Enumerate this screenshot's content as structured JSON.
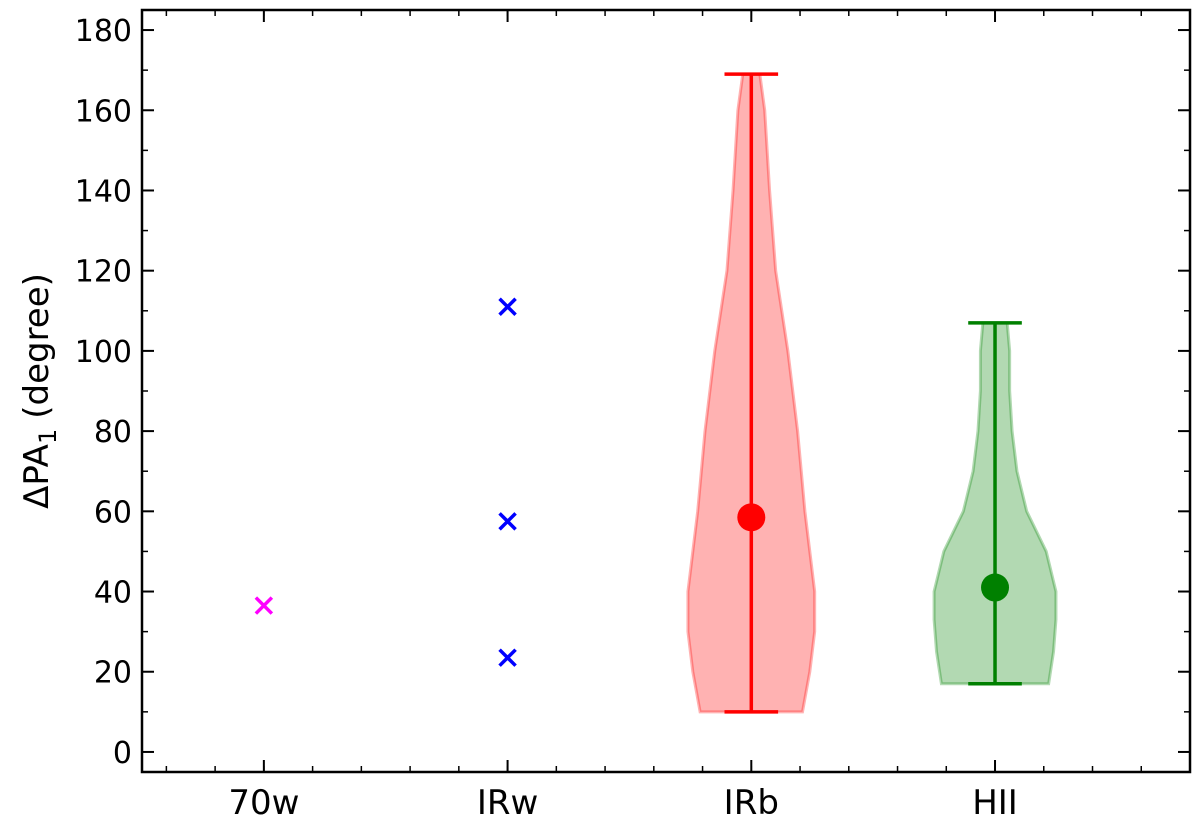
{
  "chart_data": {
    "type": "violin",
    "ylabel": {
      "main": "ΔPA",
      "sub": "1",
      "unit": "(degree)"
    },
    "categories": [
      "70w",
      "IRw",
      "IRb",
      "HII"
    ],
    "xlim": [
      -0.5,
      3.8
    ],
    "ylim": [
      -5,
      185
    ],
    "yticks": [
      0,
      20,
      40,
      60,
      80,
      100,
      120,
      140,
      160,
      180
    ],
    "groups": [
      {
        "kind": "points",
        "color": "#ff00ff",
        "values": [
          36.5
        ]
      },
      {
        "kind": "points",
        "color": "#0000ff",
        "values": [
          111,
          57.5,
          23.5
        ]
      },
      {
        "kind": "violin",
        "color": "#ff0000",
        "min": 10,
        "max": 169,
        "center": 58.5,
        "profile_y": [
          10,
          20,
          30,
          40,
          50,
          60,
          80,
          100,
          120,
          140,
          160,
          169
        ],
        "profile_width": [
          0.21,
          0.24,
          0.26,
          0.26,
          0.24,
          0.22,
          0.19,
          0.15,
          0.1,
          0.075,
          0.055,
          0.035
        ]
      },
      {
        "kind": "violin",
        "color": "#008000",
        "min": 17,
        "max": 107,
        "center": 41,
        "profile_y": [
          17,
          25,
          33,
          40,
          50,
          60,
          70,
          80,
          90,
          100,
          107
        ],
        "profile_width": [
          0.22,
          0.24,
          0.25,
          0.25,
          0.21,
          0.13,
          0.09,
          0.07,
          0.06,
          0.06,
          0.05
        ]
      }
    ]
  }
}
